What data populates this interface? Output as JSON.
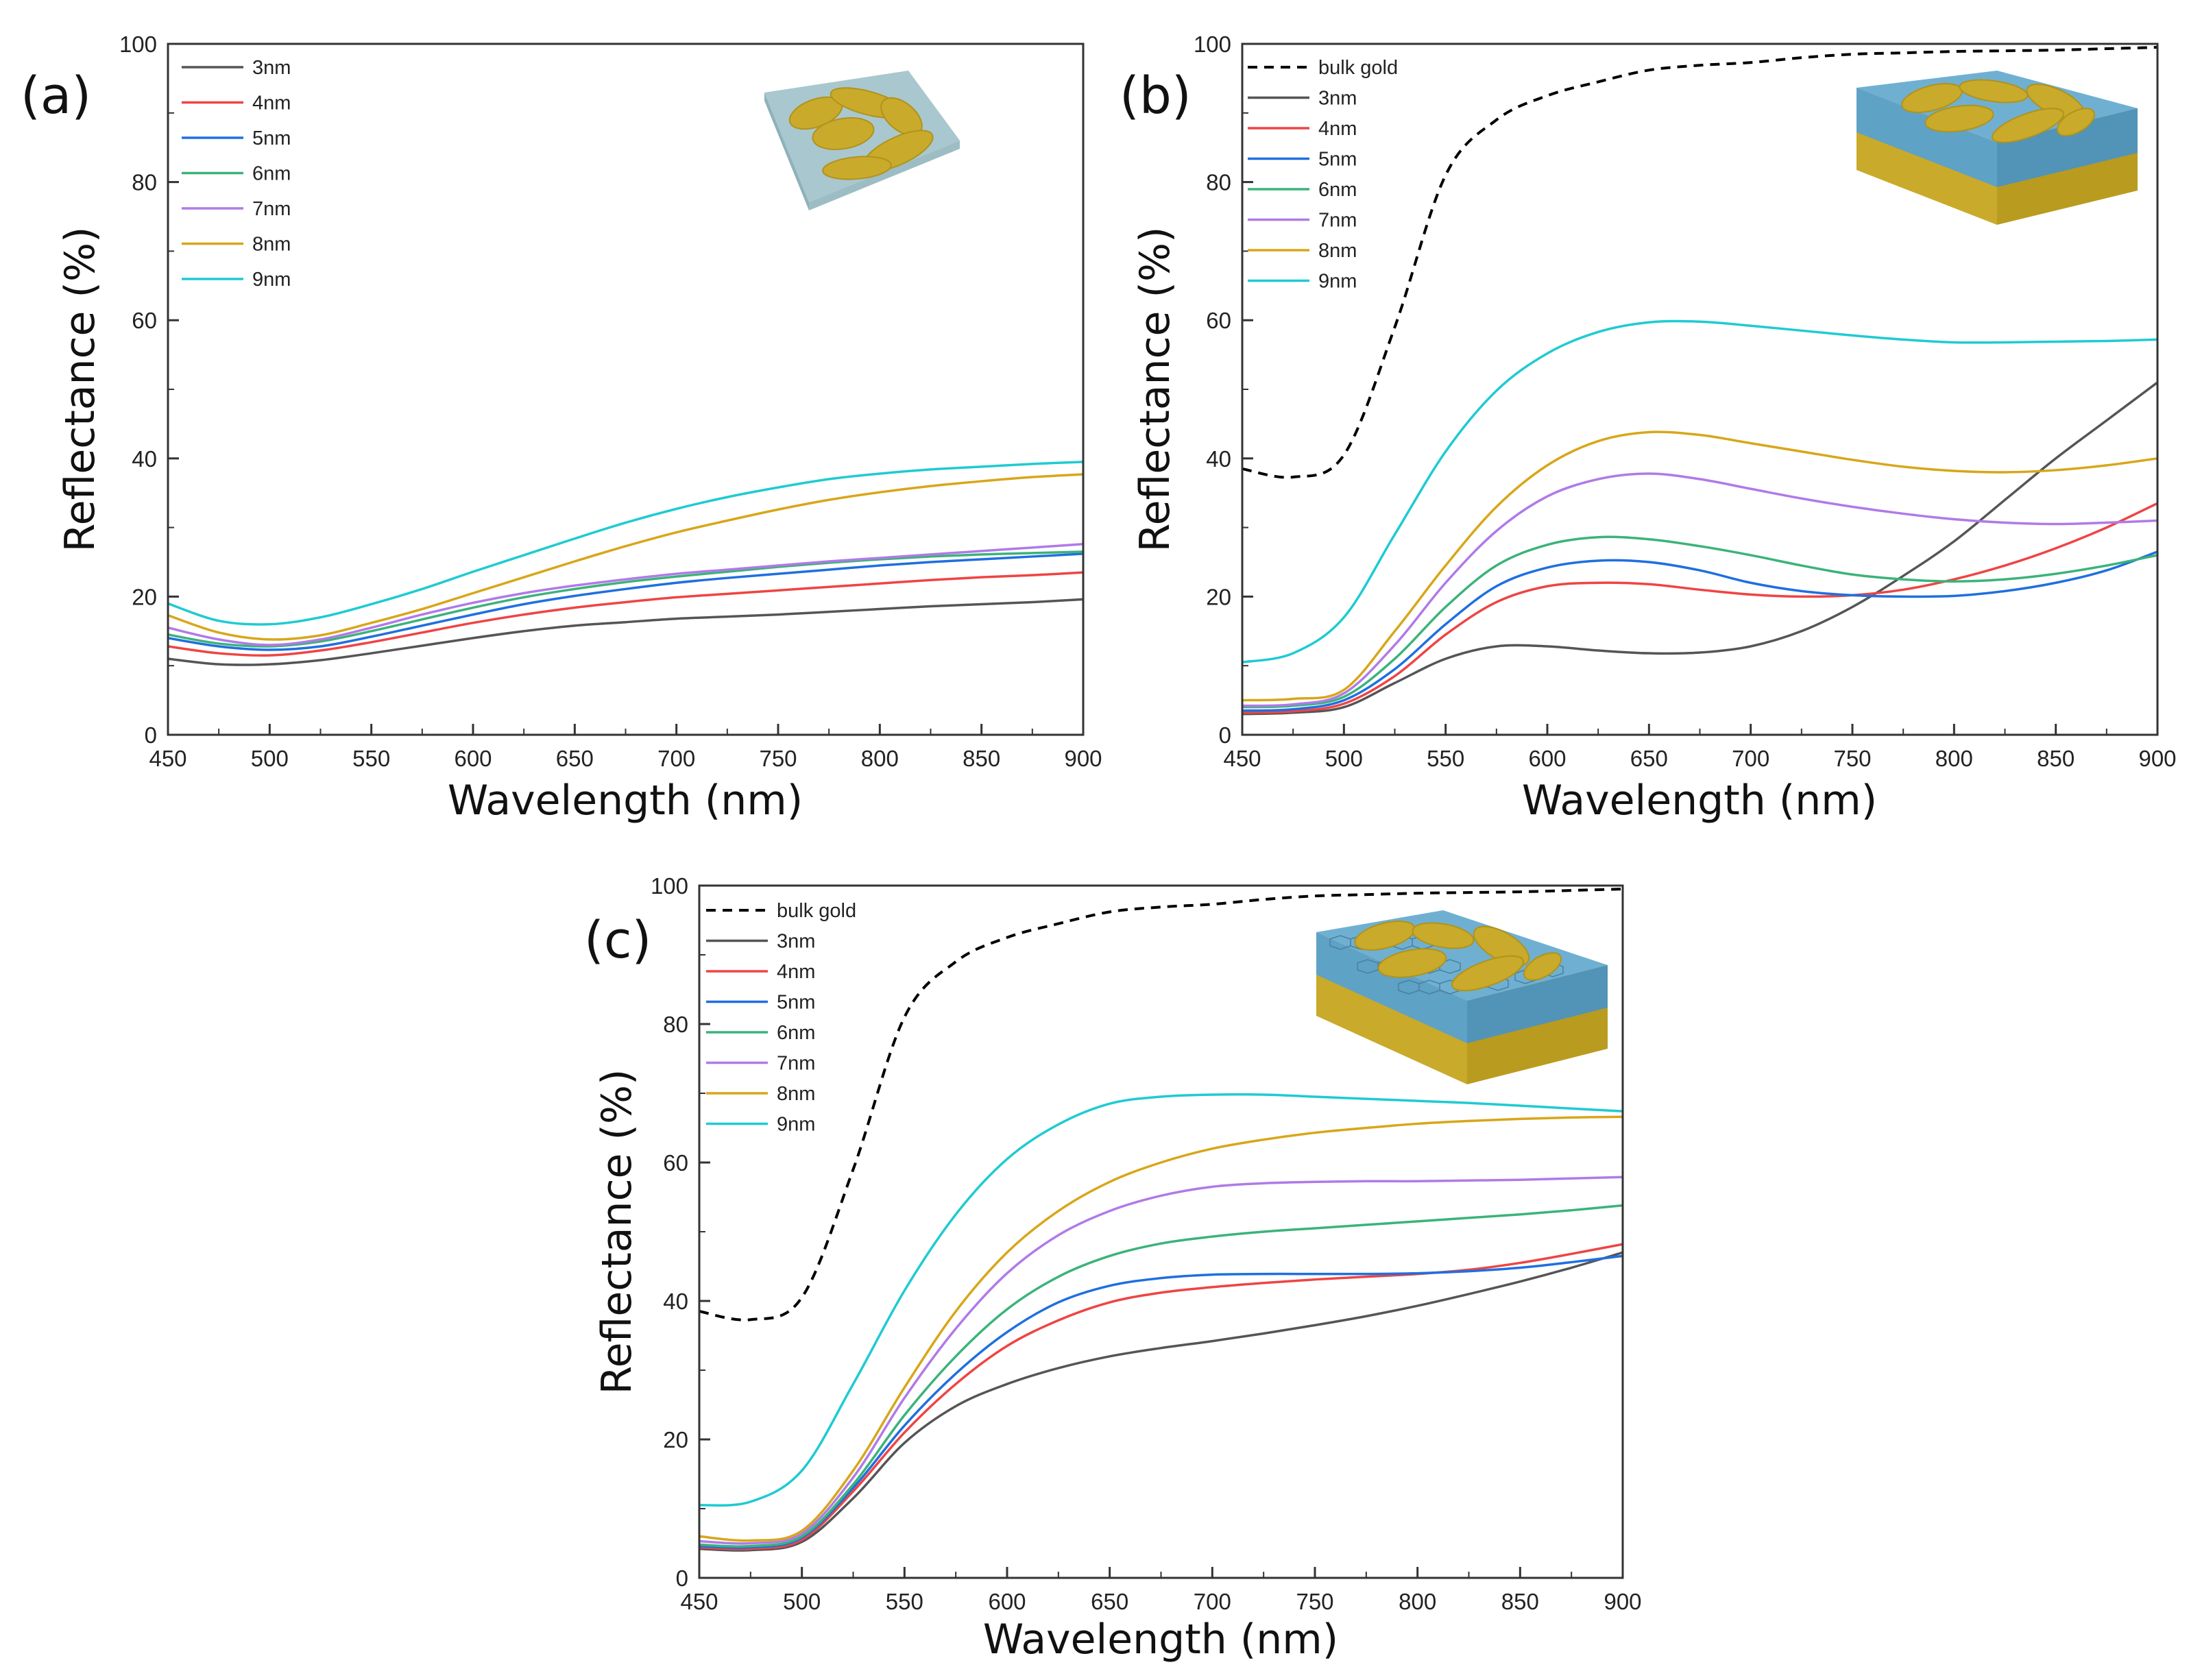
{
  "figure": {
    "colors": {
      "3nm": "#555555",
      "4nm": "#ef4444",
      "5nm": "#1f6fe0",
      "6nm": "#3bb37a",
      "7nm": "#b07ae8",
      "8nm": "#d8a619",
      "9nm": "#1ecbd2",
      "bulk gold": "#000000"
    }
  },
  "chart_data": [
    {
      "panel": "(a)",
      "type": "line",
      "xlabel": "Wavelength (nm)",
      "ylabel": "Reflectance (%)",
      "xlim": [
        450,
        900
      ],
      "ylim": [
        0,
        100
      ],
      "xticks": [
        "450",
        "500",
        "550",
        "600",
        "650",
        "700",
        "750",
        "800",
        "850",
        "900"
      ],
      "yticks": [
        "0",
        "20",
        "40",
        "60",
        "80",
        "100"
      ],
      "legend_position": "top-left",
      "inset": "gold islands on glass substrate",
      "x": [
        450,
        475,
        500,
        525,
        550,
        575,
        600,
        625,
        650,
        675,
        700,
        725,
        750,
        775,
        800,
        825,
        850,
        875,
        900
      ],
      "series": [
        {
          "name": "3nm",
          "values": [
            11,
            10.2,
            10.2,
            10.8,
            11.8,
            12.9,
            14,
            15,
            15.8,
            16.3,
            16.8,
            17.1,
            17.4,
            17.8,
            18.2,
            18.6,
            18.9,
            19.2,
            19.6
          ]
        },
        {
          "name": "4nm",
          "values": [
            12.8,
            11.8,
            11.5,
            12.2,
            13.4,
            14.8,
            16.2,
            17.4,
            18.4,
            19.2,
            19.9,
            20.4,
            20.9,
            21.4,
            21.9,
            22.4,
            22.8,
            23.1,
            23.5
          ]
        },
        {
          "name": "5nm",
          "values": [
            14,
            12.8,
            12.3,
            12.8,
            14.2,
            15.8,
            17.4,
            18.9,
            20.1,
            21.1,
            22,
            22.7,
            23.3,
            23.9,
            24.5,
            25,
            25.4,
            25.8,
            26.2
          ]
        },
        {
          "name": "6nm",
          "values": [
            14.5,
            13.2,
            12.8,
            13.5,
            15,
            16.7,
            18.4,
            19.9,
            21.1,
            22.1,
            22.9,
            23.6,
            24.3,
            24.9,
            25.4,
            25.8,
            26.1,
            26.3,
            26.5
          ]
        },
        {
          "name": "7nm",
          "values": [
            15.5,
            13.8,
            13,
            13.8,
            15.5,
            17.4,
            19.1,
            20.5,
            21.6,
            22.5,
            23.3,
            23.9,
            24.5,
            25.1,
            25.6,
            26.1,
            26.6,
            27.1,
            27.6
          ]
        },
        {
          "name": "8nm",
          "values": [
            17.3,
            14.8,
            13.8,
            14.4,
            16.2,
            18.2,
            20.5,
            22.8,
            25.1,
            27.3,
            29.3,
            31,
            32.6,
            34,
            35.1,
            36,
            36.7,
            37.3,
            37.7
          ]
        },
        {
          "name": "9nm",
          "values": [
            19,
            16.5,
            16,
            17,
            18.9,
            21.1,
            23.6,
            26,
            28.4,
            30.7,
            32.7,
            34.4,
            35.8,
            37,
            37.8,
            38.4,
            38.8,
            39.2,
            39.5
          ]
        }
      ]
    },
    {
      "panel": "(b)",
      "type": "line",
      "xlabel": "Wavelength (nm)",
      "ylabel": "Reflectance (%)",
      "xlim": [
        450,
        900
      ],
      "ylim": [
        0,
        100
      ],
      "xticks": [
        "450",
        "500",
        "550",
        "600",
        "650",
        "700",
        "750",
        "800",
        "850",
        "900"
      ],
      "yticks": [
        "0",
        "20",
        "40",
        "60",
        "80",
        "100"
      ],
      "legend_position": "top-left",
      "inset": "gold islands on dielectric spacer over gold film",
      "x": [
        450,
        475,
        500,
        525,
        550,
        575,
        600,
        625,
        650,
        675,
        700,
        725,
        750,
        775,
        800,
        825,
        850,
        875,
        900
      ],
      "bulk_gold": {
        "name": "bulk gold",
        "values": [
          38.5,
          37.3,
          40.5,
          59,
          81,
          89,
          92.5,
          94.5,
          96.2,
          96.9,
          97.3,
          98,
          98.5,
          98.7,
          98.9,
          99,
          99.1,
          99.3,
          99.5
        ]
      },
      "series": [
        {
          "name": "3nm",
          "values": [
            3,
            3.2,
            4,
            7.5,
            11,
            12.8,
            12.8,
            12.2,
            11.8,
            11.9,
            12.8,
            15,
            18.5,
            23,
            28,
            34,
            40,
            45.5,
            51
          ]
        },
        {
          "name": "4nm",
          "values": [
            3.2,
            3.4,
            4.5,
            8.5,
            14.5,
            19.2,
            21.5,
            22,
            21.8,
            21,
            20.3,
            20,
            20.2,
            21,
            22.5,
            24.5,
            27,
            30,
            33.5
          ]
        },
        {
          "name": "5nm",
          "values": [
            3.5,
            3.7,
            5,
            9.5,
            16,
            21.5,
            24.2,
            25.2,
            25,
            23.8,
            22,
            20.8,
            20.2,
            20,
            20.1,
            20.8,
            22,
            23.8,
            26.5
          ]
        },
        {
          "name": "6nm",
          "values": [
            4,
            4.2,
            5.5,
            11,
            18.5,
            24.5,
            27.5,
            28.6,
            28.3,
            27.3,
            26,
            24.5,
            23.2,
            22.5,
            22.2,
            22.5,
            23.3,
            24.5,
            26
          ]
        },
        {
          "name": "7nm",
          "values": [
            4.2,
            4.4,
            6,
            13,
            22,
            29.5,
            34.5,
            37,
            37.8,
            37,
            35.6,
            34.2,
            33,
            32,
            31.2,
            30.7,
            30.5,
            30.7,
            31
          ]
        },
        {
          "name": "8nm",
          "values": [
            5,
            5.2,
            6.5,
            15,
            24.5,
            33,
            39,
            42.5,
            43.8,
            43.4,
            42.2,
            41,
            39.8,
            38.8,
            38.2,
            38,
            38.3,
            39,
            40
          ]
        },
        {
          "name": "9nm",
          "values": [
            10.5,
            11.8,
            17,
            29,
            41,
            49.8,
            55.2,
            58.3,
            59.7,
            59.8,
            59.2,
            58.5,
            57.8,
            57.2,
            56.8,
            56.8,
            56.9,
            57,
            57.2
          ]
        }
      ]
    },
    {
      "panel": "(c)",
      "type": "line",
      "xlabel": "Wavelength (nm)",
      "ylabel": "Reflectance (%)",
      "xlim": [
        450,
        900
      ],
      "ylim": [
        0,
        100
      ],
      "xticks": [
        "450",
        "500",
        "550",
        "600",
        "650",
        "700",
        "750",
        "800",
        "850",
        "900"
      ],
      "yticks": [
        "0",
        "20",
        "40",
        "60",
        "80",
        "100"
      ],
      "legend_position": "top-left",
      "inset": "gold islands on graphene-covered spacer over gold film",
      "x": [
        450,
        475,
        500,
        525,
        550,
        575,
        600,
        625,
        650,
        675,
        700,
        725,
        750,
        775,
        800,
        825,
        850,
        875,
        900
      ],
      "bulk_gold": {
        "name": "bulk gold",
        "values": [
          38.5,
          37.3,
          40.5,
          59,
          81,
          89,
          92.5,
          94.5,
          96.2,
          96.9,
          97.3,
          98,
          98.5,
          98.7,
          98.9,
          99,
          99.1,
          99.3,
          99.5
        ]
      },
      "series": [
        {
          "name": "3nm",
          "values": [
            4.2,
            4,
            5.2,
            11.5,
            19.5,
            24.8,
            28,
            30.3,
            32,
            33.2,
            34.2,
            35.3,
            36.5,
            37.8,
            39.3,
            41,
            42.8,
            44.8,
            47
          ]
        },
        {
          "name": "4nm",
          "values": [
            4.4,
            4.2,
            5.5,
            12.5,
            21,
            28,
            33.5,
            37.2,
            39.8,
            41.2,
            42,
            42.6,
            43.1,
            43.5,
            43.9,
            44.5,
            45.5,
            46.8,
            48.2
          ]
        },
        {
          "name": "5nm",
          "values": [
            4.6,
            4.4,
            5.8,
            13,
            22,
            29.5,
            35.5,
            39.8,
            42.2,
            43.3,
            43.8,
            43.9,
            43.9,
            43.9,
            44,
            44.3,
            44.8,
            45.6,
            46.5
          ]
        },
        {
          "name": "6nm",
          "values": [
            4.8,
            4.6,
            6,
            13.5,
            23.5,
            32,
            38.8,
            43.5,
            46.5,
            48.3,
            49.3,
            50,
            50.5,
            51,
            51.5,
            52,
            52.5,
            53.1,
            53.8
          ]
        },
        {
          "name": "7nm",
          "values": [
            5.3,
            5,
            6.4,
            14.5,
            26,
            36,
            44,
            49.5,
            53,
            55.2,
            56.5,
            57,
            57.2,
            57.3,
            57.3,
            57.4,
            57.5,
            57.7,
            57.9
          ]
        },
        {
          "name": "8nm",
          "values": [
            6,
            5.4,
            6.8,
            15.5,
            27.5,
            38.5,
            47,
            53,
            57.2,
            60,
            62,
            63.3,
            64.3,
            65,
            65.6,
            66,
            66.3,
            66.5,
            66.6
          ]
        },
        {
          "name": "9nm",
          "values": [
            10.5,
            11,
            15.5,
            28,
            41.5,
            52.5,
            60.5,
            65.5,
            68.5,
            69.5,
            69.8,
            69.8,
            69.5,
            69.2,
            68.9,
            68.6,
            68.2,
            67.8,
            67.4
          ]
        }
      ]
    }
  ]
}
